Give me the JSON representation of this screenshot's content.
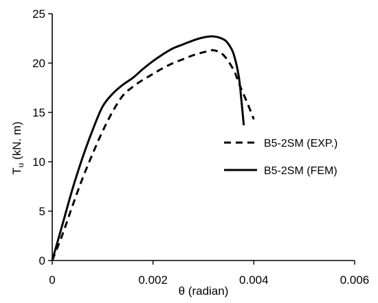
{
  "chart_data": {
    "type": "line",
    "title": "",
    "xlabel": "θ (radian)",
    "ylabel_main": "T",
    "ylabel_sub": "u",
    "ylabel_rest": " (kN. m)",
    "xlim": [
      0,
      0.006
    ],
    "ylim": [
      0,
      25
    ],
    "x_ticks": [
      0,
      0.002,
      0.004,
      0.006
    ],
    "x_tick_labels": [
      "0",
      "0.002",
      "0.004",
      "0.006"
    ],
    "y_ticks": [
      0,
      5,
      10,
      15,
      20,
      25
    ],
    "y_tick_labels": [
      "0",
      "5",
      "10",
      "15",
      "20",
      "25"
    ],
    "grid": false,
    "legend_position": "right-middle",
    "series": [
      {
        "name": "B5-2SM (EXP.)",
        "style": "dashed",
        "color": "#000000",
        "x": [
          0,
          0.0002,
          0.0004,
          0.0006,
          0.0008,
          0.001,
          0.0012,
          0.0014,
          0.0016,
          0.0018,
          0.002,
          0.0022,
          0.0024,
          0.0026,
          0.0028,
          0.003,
          0.0032,
          0.0034,
          0.0036,
          0.0037,
          0.0038,
          0.0039,
          0.004
        ],
        "y": [
          0,
          2.6,
          5.5,
          8.3,
          10.8,
          13.1,
          15.1,
          16.7,
          17.6,
          18.3,
          18.9,
          19.5,
          20.0,
          20.4,
          20.8,
          21.1,
          21.3,
          20.8,
          19.3,
          18.0,
          16.8,
          15.6,
          14.3
        ]
      },
      {
        "name": "B5-2SM (FEM)",
        "style": "solid",
        "color": "#000000",
        "x": [
          0,
          0.0002,
          0.0004,
          0.0006,
          0.0008,
          0.001,
          0.0012,
          0.0014,
          0.0016,
          0.0018,
          0.002,
          0.0022,
          0.0024,
          0.0026,
          0.0028,
          0.003,
          0.0032,
          0.0034,
          0.0035,
          0.0036,
          0.0037,
          0.00375,
          0.0038
        ],
        "y": [
          0,
          3.6,
          7.2,
          10.4,
          13.2,
          15.6,
          16.9,
          17.8,
          18.5,
          19.4,
          20.2,
          20.9,
          21.5,
          21.9,
          22.3,
          22.6,
          22.7,
          22.4,
          21.9,
          20.9,
          18.7,
          16.4,
          13.7
        ]
      }
    ]
  }
}
